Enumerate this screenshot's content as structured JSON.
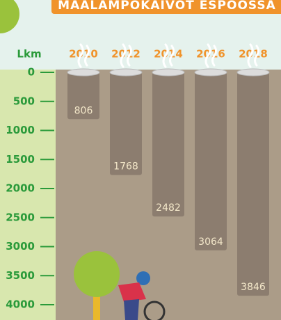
{
  "chart_data": {
    "type": "bar",
    "title": "MAALAMPOKAIVOT ESPOOSSA",
    "ylabel": "Lkm",
    "categories": [
      "2010",
      "2012",
      "2014",
      "2016",
      "2018"
    ],
    "values": [
      806,
      1768,
      2482,
      3064,
      3846
    ],
    "color": "#8c7d6f",
    "ylim": [
      0,
      4000
    ],
    "y_inverted": true,
    "yticks": [
      0,
      500,
      1000,
      1500,
      2000,
      2500,
      3000,
      3500,
      4000
    ]
  }
}
